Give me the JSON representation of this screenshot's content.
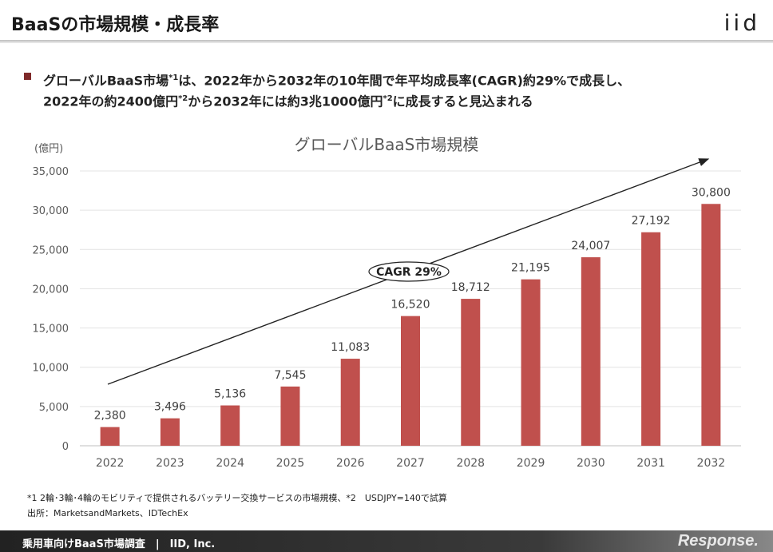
{
  "header": {
    "title": "BaaSの市場規模・成長率",
    "logo": "iid"
  },
  "bullet": {
    "line1_pre": "グローバルBaaS市場",
    "line1_sup": "*1",
    "line1_post": "は、2022年から2032年の10年間で年平均成長率(CAGR)約29%で成長し、",
    "line2_pre": "2022年の約2400億円",
    "line2_sup": "*2",
    "line2_mid": "から2032年には約3兆1000億円",
    "line2_sup2": "*2",
    "line2_post": "に成長すると見込まれる"
  },
  "chart_data": {
    "type": "bar",
    "title": "グローバルBaaS市場規模",
    "unit_label": "(億円)",
    "categories": [
      "2022",
      "2023",
      "2024",
      "2025",
      "2026",
      "2027",
      "2028",
      "2029",
      "2030",
      "2031",
      "2032"
    ],
    "values": [
      2380,
      3496,
      5136,
      7545,
      11083,
      16520,
      18712,
      21195,
      24007,
      27192,
      30800
    ],
    "value_labels": [
      "2,380",
      "3,496",
      "5,136",
      "7,545",
      "11,083",
      "16,520",
      "18,712",
      "21,195",
      "24,007",
      "27,192",
      "30,800"
    ],
    "y_ticks": [
      "0",
      "5,000",
      "10,000",
      "15,000",
      "20,000",
      "25,000",
      "30,000",
      "35,000"
    ],
    "ylim": [
      0,
      35000
    ],
    "bar_color": "#c0504d",
    "grid": true,
    "annotation": "CAGR 29%"
  },
  "footnote": "*1 2輪･3輪･4輪のモビリティで提供されるバッテリー交換サービスの市場規模、*2　USDJPY=140で試算",
  "source": "出所：MarketsandMarkets、IDTechEx",
  "footer": {
    "text": "乗用車向けBaaS市場調査　|　IID, Inc.",
    "brand": "Response."
  }
}
